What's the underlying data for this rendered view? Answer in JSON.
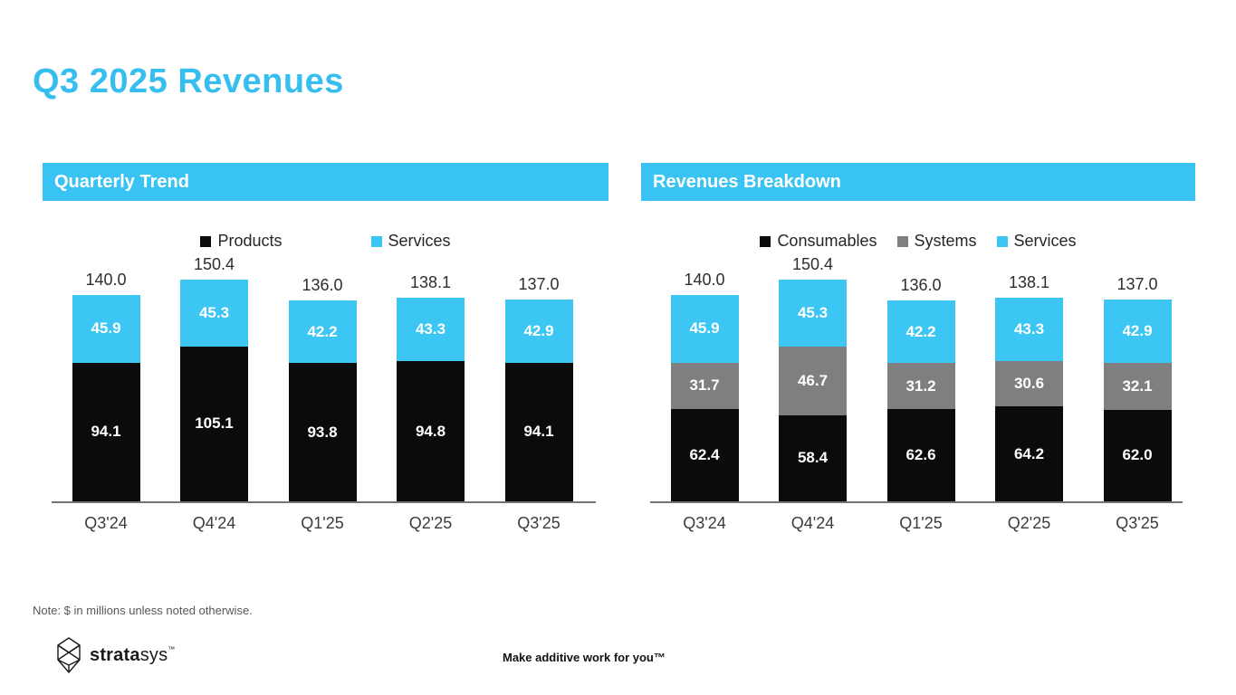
{
  "page": {
    "title": "Q3 2025 Revenues",
    "note": "Note: $ in millions unless noted otherwise.",
    "tagline": "Make additive work for you™",
    "brand": {
      "bold": "strata",
      "light": "sys",
      "tm": "™"
    }
  },
  "colors": {
    "title_cyan": "#36BEEF",
    "band_cyan": "#39C3F2",
    "cyan": "#3CC6F3",
    "black": "#0B0B0B",
    "gray": "#7F7F7F",
    "axis_gray": "#737373"
  },
  "chart_data": [
    {
      "type": "bar",
      "stacked": true,
      "title": "Quarterly Trend",
      "categories": [
        "Q3'24",
        "Q4'24",
        "Q1'25",
        "Q2'25",
        "Q3'25"
      ],
      "series": [
        {
          "name": "Products",
          "color_key": "black",
          "values": [
            94.1,
            105.1,
            93.8,
            94.8,
            94.1
          ]
        },
        {
          "name": "Services",
          "color_key": "cyan",
          "values": [
            45.9,
            45.3,
            42.2,
            43.3,
            42.9
          ]
        }
      ],
      "totals": [
        140.0,
        150.4,
        136.0,
        138.1,
        137.0
      ],
      "ylim": [
        0,
        160
      ],
      "grid": false,
      "legend_position": "top",
      "value_labels": "inside-white-bold",
      "total_labels": "above-bar"
    },
    {
      "type": "bar",
      "stacked": true,
      "title": "Revenues Breakdown",
      "categories": [
        "Q3'24",
        "Q4'24",
        "Q1'25",
        "Q2'25",
        "Q3'25"
      ],
      "series": [
        {
          "name": "Consumables",
          "color_key": "black",
          "values": [
            62.4,
            58.4,
            62.6,
            64.2,
            62.0
          ]
        },
        {
          "name": "Systems",
          "color_key": "gray",
          "values": [
            31.7,
            46.7,
            31.2,
            30.6,
            32.1
          ]
        },
        {
          "name": "Services",
          "color_key": "cyan",
          "values": [
            45.9,
            45.3,
            42.2,
            43.3,
            42.9
          ]
        }
      ],
      "totals": [
        140.0,
        150.4,
        136.0,
        138.1,
        137.0
      ],
      "ylim": [
        0,
        160
      ],
      "grid": false,
      "legend_position": "top",
      "value_labels": "inside-white-bold",
      "total_labels": "above-bar"
    }
  ]
}
